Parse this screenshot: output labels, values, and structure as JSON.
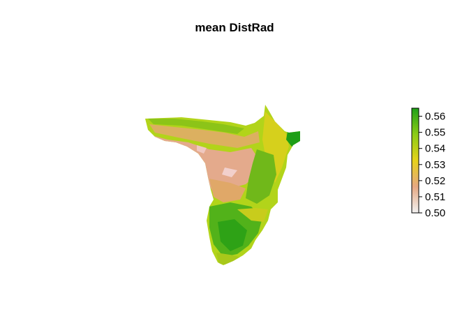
{
  "title": "mean DistRad",
  "colors": {
    "low": "#f2f2f2",
    "mid_low": "#e6a882",
    "mid": "#e6d21a",
    "mid_high": "#8ccc16",
    "high": "#1ea018",
    "shadow_gray": "#c8c8c8"
  },
  "legend": {
    "min": 0.5,
    "max": 0.565,
    "ticks": [
      "0.56",
      "0.55",
      "0.54",
      "0.53",
      "0.52",
      "0.51",
      "0.50"
    ],
    "tick_values": [
      0.56,
      0.55,
      0.54,
      0.53,
      0.52,
      0.51,
      0.5
    ]
  }
}
